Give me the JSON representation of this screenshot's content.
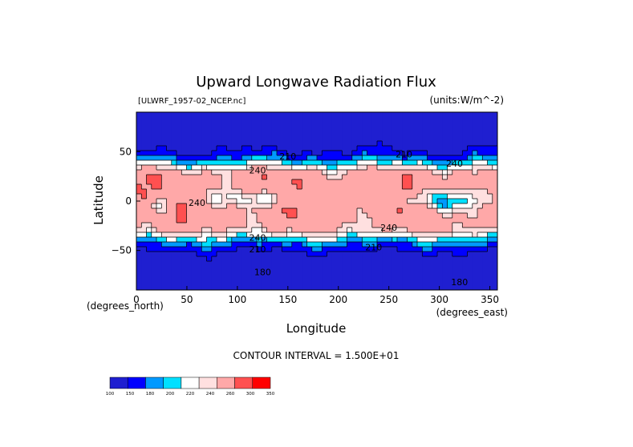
{
  "chart_data": {
    "type": "heatmap",
    "title": "Upward Longwave Radiation Flux",
    "subtitle_left": "[ULWRF_1957-02_NCEP.nc]",
    "subtitle_right": "(units:W/m^-2)",
    "xlabel": "Longitude",
    "ylabel": "Latitude",
    "x_unit_label": "(degrees_east)",
    "y_unit_label": "(degrees_north)",
    "xlim": [
      0,
      357.5
    ],
    "ylim": [
      -90,
      90
    ],
    "x_ticks": [
      0,
      50,
      100,
      150,
      200,
      250,
      300,
      350
    ],
    "y_ticks": [
      50,
      0,
      -50
    ],
    "annotation": "CONTOUR INTERVAL = 1.500E+01",
    "contour_labels": [
      {
        "text": "210",
        "lon": 150,
        "lat": 42
      },
      {
        "text": "210",
        "lon": 265,
        "lat": 44
      },
      {
        "text": "240",
        "lon": 120,
        "lat": 28
      },
      {
        "text": "240",
        "lon": 315,
        "lat": 35
      },
      {
        "text": "240",
        "lon": 60,
        "lat": -5
      },
      {
        "text": "240",
        "lon": 120,
        "lat": -40
      },
      {
        "text": "240",
        "lon": 250,
        "lat": -30
      },
      {
        "text": "210",
        "lon": 120,
        "lat": -52
      },
      {
        "text": "210",
        "lon": 235,
        "lat": -50
      },
      {
        "text": "180",
        "lon": 125,
        "lat": -75
      },
      {
        "text": "180",
        "lon": 320,
        "lat": -85
      }
    ],
    "colorbar": {
      "levels": [
        100,
        150,
        180,
        200,
        220,
        240,
        260,
        300,
        350
      ],
      "colors": [
        "#1f1fd0",
        "#0000ff",
        "#0099ff",
        "#00e0ff",
        "#ffffff",
        "#ffe0e0",
        "#ffa8a8",
        "#ff5050",
        "#ff0000"
      ]
    }
  }
}
